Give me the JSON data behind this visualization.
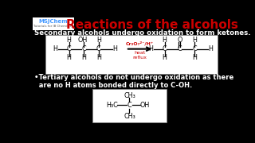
{
  "bg_color": "#000000",
  "title": "Reactions of the alcohols",
  "title_color": "#cc0000",
  "title_fontsize": 11,
  "logo_text1": "MSJChem",
  "logo_text2": "Tutorials for IB Chemistry",
  "logo_bg": "#ffffff",
  "logo_color1": "#4499ff",
  "secondary_text": "Secondary alcohols undergo oxidation to form ketones.",
  "tertiary_text1": "•Tertiary alcohols do not undergo oxidation as there",
  "tertiary_text2": "  are no H atoms bonded directly to C-OH.",
  "box_bg": "#ffffff",
  "box_fg": "#000000",
  "reagent_color": "#cc0000",
  "reagent_text": "Cr₂O₇²⁻/H⁺",
  "heat_text": "heat\nreflux"
}
